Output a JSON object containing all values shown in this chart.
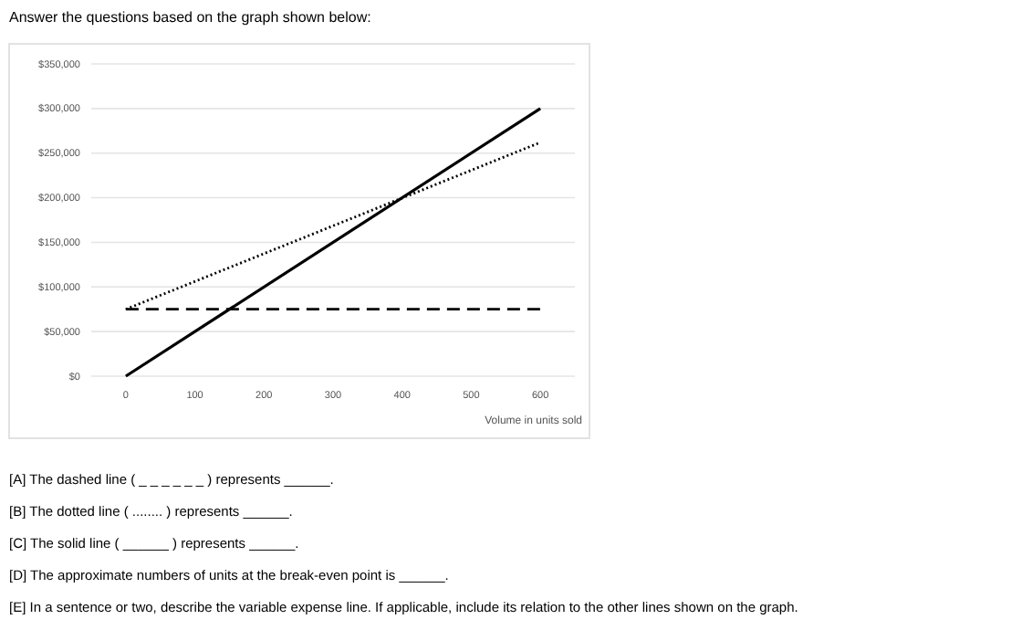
{
  "chart_data": {
    "type": "line",
    "title": "Answer the questions based on the graph shown below:",
    "xlabel": "Volume in units sold",
    "x": [
      0,
      600
    ],
    "series": [
      {
        "color": "#000000",
        "values": [
          0,
          300000
        ],
        "line_style": "solid"
      },
      {
        "color": "#000000",
        "values": [
          75000,
          262000
        ],
        "line_style": "dotted"
      },
      {
        "color": "#000000",
        "values": [
          75000,
          75000
        ],
        "line_style": "dashed"
      }
    ],
    "xlim": [
      -50,
      650
    ],
    "xticks": [
      0,
      100,
      200,
      300,
      400,
      500,
      600
    ],
    "ylim": [
      0,
      350000
    ],
    "yticks": [
      {
        "value": 0,
        "label": "$0"
      },
      {
        "value": 50000,
        "label": "$50,000"
      },
      {
        "value": 100000,
        "label": "$100,000"
      },
      {
        "value": 150000,
        "label": "$150,000"
      },
      {
        "value": 200000,
        "label": "$200,000"
      },
      {
        "value": 250000,
        "label": "$250,000"
      },
      {
        "value": 300000,
        "label": "$300,000"
      },
      {
        "value": 350000,
        "label": "$350,000"
      }
    ],
    "grid": "y",
    "marker": "none",
    "annotations": [
      "[A]  The dashed line ( _ _ _ _ _ _ ) represents ______.",
      "[B]  The dotted line ( ........ ) represents ______.",
      "[C]  The solid line ( ______ ) represents ______.",
      "[D]  The approximate numbers of units at the break-even point is ______.",
      "[E]  In a sentence or two, describe the variable expense line.  If applicable, include its relation to the other lines shown on the graph."
    ]
  }
}
